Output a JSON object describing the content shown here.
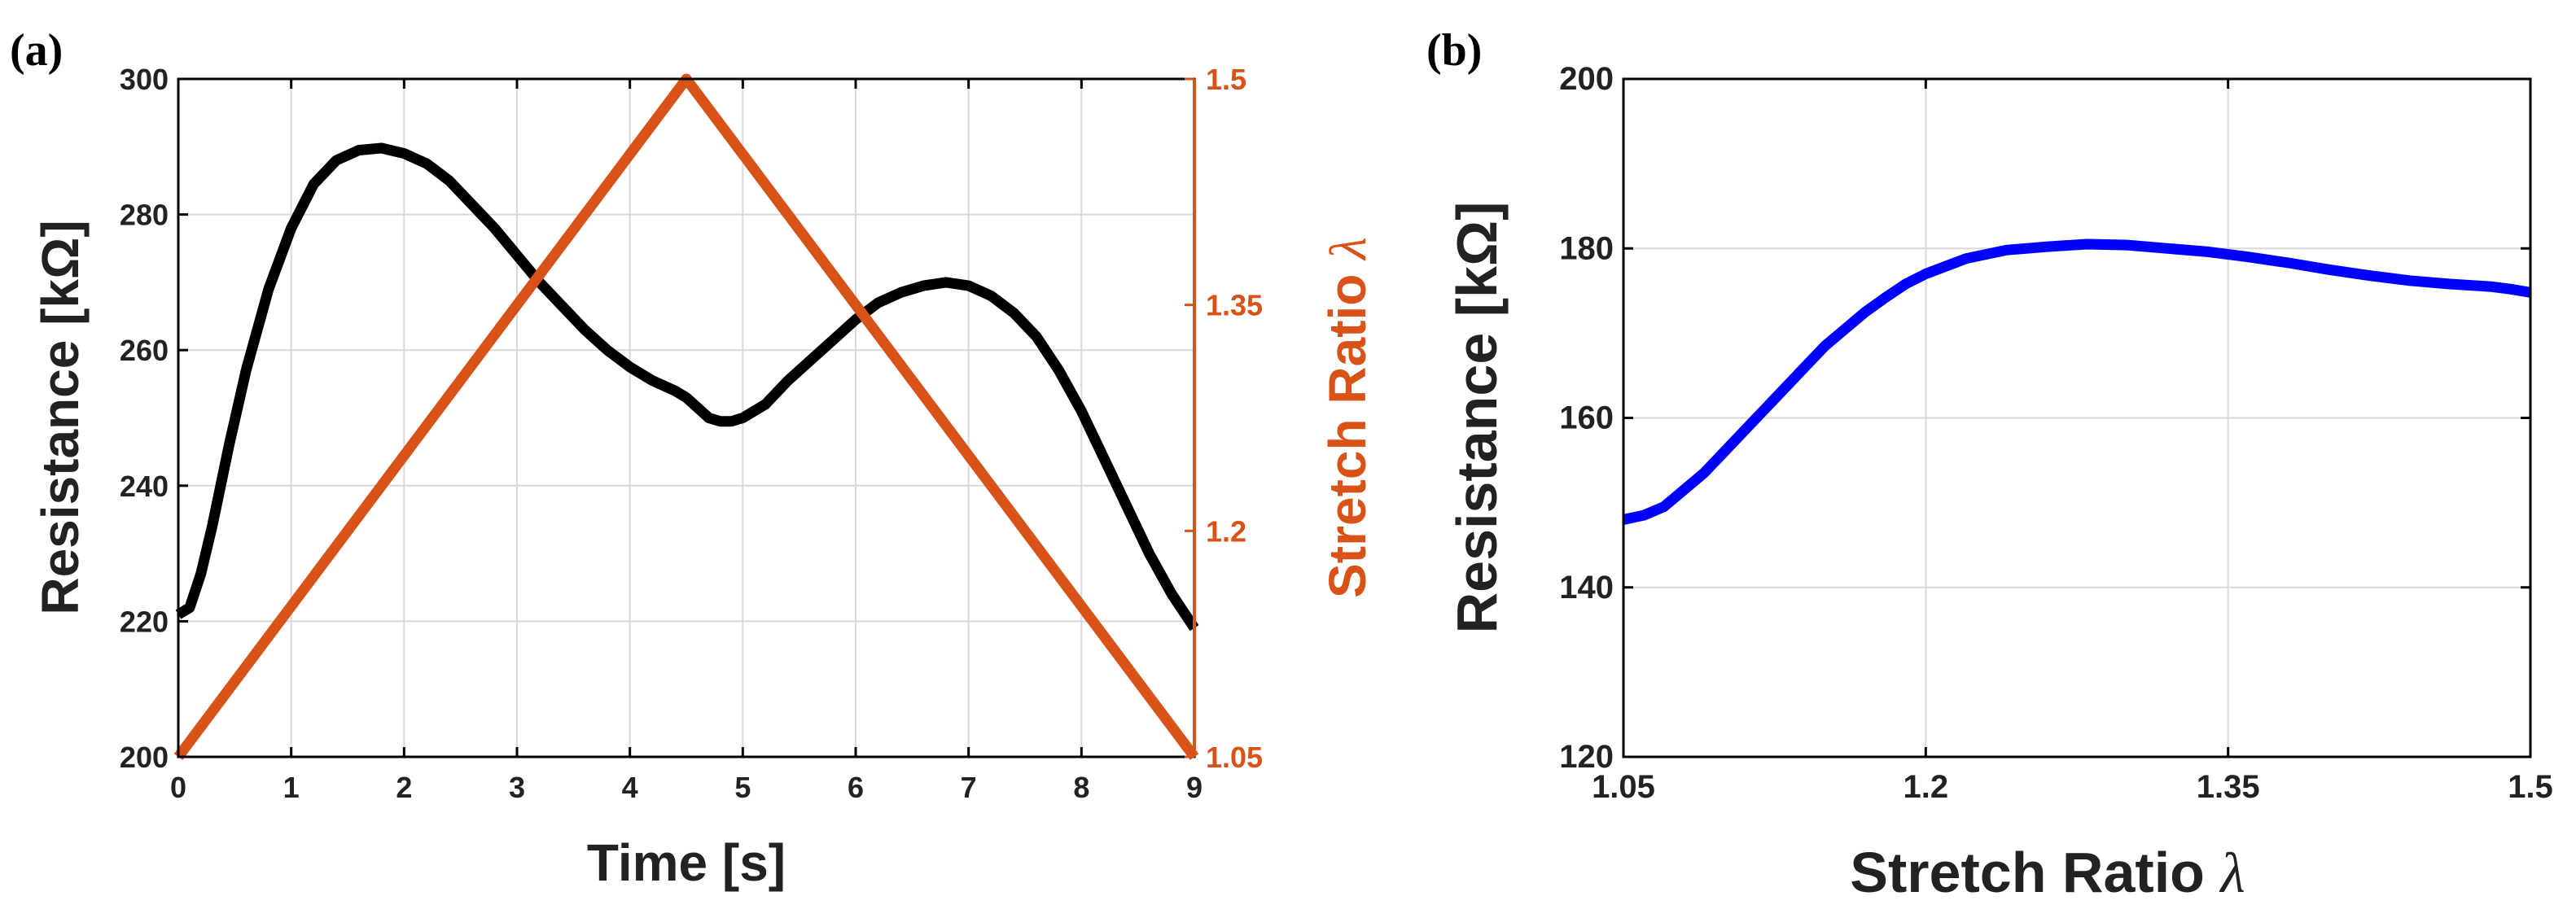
{
  "panels": [
    {
      "panel_label": "(a)",
      "colors": {
        "left_series": "#000000",
        "right_series": "#D95319",
        "grid": "#d9d9d9",
        "axis": "#000000"
      },
      "chart_data": {
        "type": "line",
        "title": "",
        "xlabel": "Time [s]",
        "ylabel": "Resistance [kΩ]",
        "y2label_text": "Stretch Ratio ",
        "y2label_symbol": "λ",
        "xlim": [
          0,
          9
        ],
        "ylim": [
          200,
          300
        ],
        "y2lim": [
          1.05,
          1.5
        ],
        "grid": true,
        "xticks": [
          0,
          1,
          2,
          3,
          4,
          5,
          6,
          7,
          8,
          9
        ],
        "yticks": [
          200,
          220,
          240,
          260,
          280,
          300
        ],
        "y2ticks": [
          1.05,
          1.2,
          1.35,
          1.5
        ],
        "series": [
          {
            "name": "Resistance",
            "axis": "left",
            "x": [
              0.0,
              0.1,
              0.2,
              0.3,
              0.45,
              0.6,
              0.8,
              1.0,
              1.2,
              1.4,
              1.6,
              1.8,
              2.0,
              2.2,
              2.4,
              2.6,
              2.8,
              3.0,
              3.2,
              3.4,
              3.6,
              3.8,
              4.0,
              4.2,
              4.4,
              4.5,
              4.6,
              4.7,
              4.8,
              4.9,
              5.0,
              5.2,
              5.4,
              5.6,
              5.8,
              6.0,
              6.2,
              6.4,
              6.6,
              6.8,
              7.0,
              7.2,
              7.4,
              7.6,
              7.8,
              8.0,
              8.2,
              8.4,
              8.6,
              8.8,
              9.0
            ],
            "values": [
              221,
              222,
              227,
              234,
              246,
              257,
              269,
              278,
              284.5,
              288,
              289.5,
              289.8,
              289,
              287.5,
              285,
              281.5,
              278,
              274,
              270,
              266.5,
              263,
              260,
              257.5,
              255.5,
              254,
              253,
              251.5,
              250,
              249.5,
              249.5,
              250,
              252,
              255.5,
              258.5,
              261.5,
              264.5,
              267,
              268.5,
              269.5,
              270,
              269.5,
              268,
              265.5,
              262,
              257,
              251,
              244,
              237,
              230,
              224,
              219
            ]
          },
          {
            "name": "Stretch Ratio λ",
            "axis": "right",
            "x": [
              0,
              4.5,
              9
            ],
            "values": [
              1.05,
              1.5,
              1.05
            ]
          }
        ]
      }
    },
    {
      "panel_label": "(b)",
      "colors": {
        "series": "#0000FF",
        "grid": "#d9d9d9",
        "axis": "#000000"
      },
      "chart_data": {
        "type": "line",
        "title": "",
        "xlabel_text": "Stretch Ratio ",
        "xlabel_symbol": "λ",
        "ylabel": "Resistance [kΩ]",
        "xlim": [
          1.05,
          1.5
        ],
        "ylim": [
          120,
          200
        ],
        "grid": true,
        "xticks": [
          1.05,
          1.2,
          1.35,
          1.5
        ],
        "yticks": [
          120,
          140,
          160,
          180,
          200
        ],
        "series": [
          {
            "name": "Resistance",
            "x": [
              1.05,
              1.06,
              1.07,
              1.08,
              1.09,
              1.1,
              1.11,
              1.12,
              1.13,
              1.14,
              1.15,
              1.16,
              1.17,
              1.18,
              1.19,
              1.2,
              1.22,
              1.24,
              1.26,
              1.28,
              1.3,
              1.32,
              1.34,
              1.36,
              1.38,
              1.4,
              1.42,
              1.44,
              1.46,
              1.48,
              1.49,
              1.5
            ],
            "values": [
              148,
              148.5,
              149.5,
              151.5,
              153.5,
              156,
              158.5,
              161,
              163.5,
              166,
              168.5,
              170.5,
              172.5,
              174.2,
              175.8,
              177,
              178.8,
              179.8,
              180.2,
              180.5,
              180.4,
              180,
              179.6,
              179,
              178.3,
              177.5,
              176.8,
              176.2,
              175.8,
              175.5,
              175.2,
              174.8
            ]
          }
        ]
      }
    }
  ]
}
